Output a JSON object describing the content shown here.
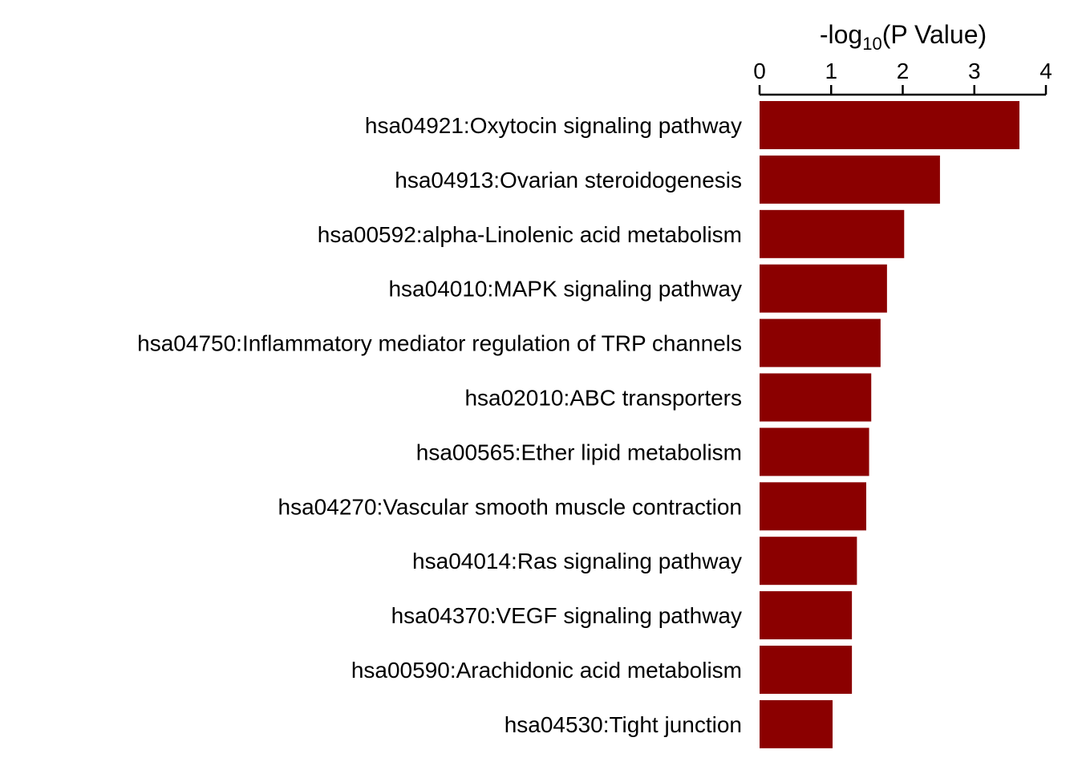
{
  "chart_data": {
    "type": "bar",
    "orientation": "horizontal",
    "xlabel_prefix": "-log",
    "xlabel_subscript": "10",
    "xlabel_suffix": "(P Value)",
    "xlim": [
      0,
      4
    ],
    "xticks": [
      "0",
      "1",
      "2",
      "3",
      "4"
    ],
    "axis_position": "top",
    "bar_color": "#8b0000",
    "grid": false,
    "legend": "none",
    "categories": [
      "hsa04921:Oxytocin signaling pathway",
      "hsa04913:Ovarian steroidogenesis",
      "hsa00592:alpha-Linolenic acid metabolism",
      "hsa04010:MAPK signaling pathway",
      "hsa04750:Inflammatory mediator regulation of TRP channels",
      "hsa02010:ABC transporters",
      "hsa00565:Ether lipid metabolism",
      "hsa04270:Vascular smooth muscle contraction",
      "hsa04014:Ras signaling pathway",
      "hsa04370:VEGF signaling pathway",
      "hsa00590:Arachidonic acid metabolism",
      "hsa04530:Tight junction"
    ],
    "values": [
      3.63,
      2.52,
      2.02,
      1.78,
      1.69,
      1.56,
      1.53,
      1.49,
      1.36,
      1.29,
      1.29,
      1.02
    ]
  }
}
